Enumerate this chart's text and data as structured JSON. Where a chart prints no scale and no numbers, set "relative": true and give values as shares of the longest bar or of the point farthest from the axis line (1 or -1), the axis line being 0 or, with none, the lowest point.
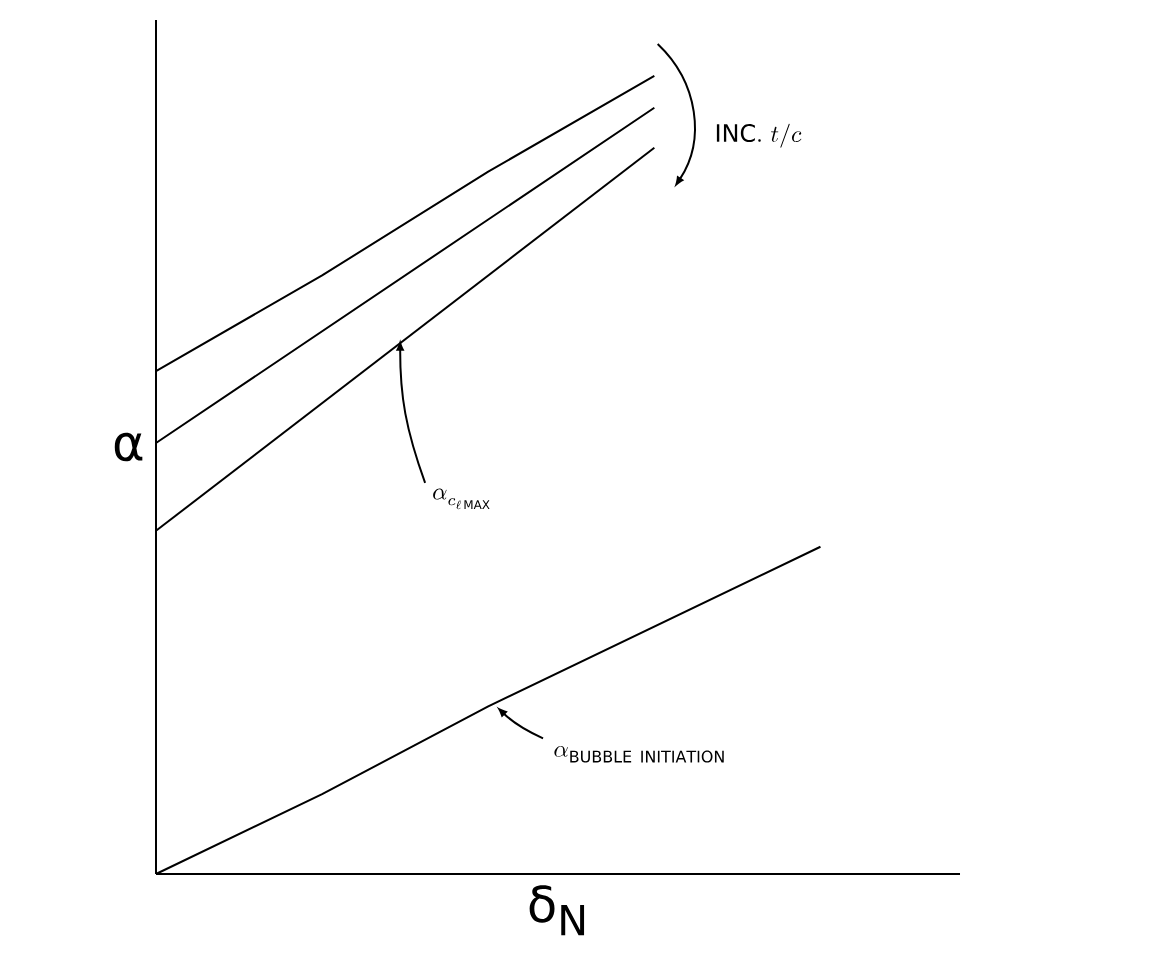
{
  "chart_data": {
    "type": "line",
    "relative": true,
    "xlabel": "δ$_{N}$",
    "ylabel": "α",
    "categories": [
      null,
      null,
      null,
      null,
      null
    ],
    "series": [
      {
        "color": "#000000",
        "values": [
          0.63,
          0.75,
          0.88,
          1.0,
          null
        ]
      },
      {
        "color": "#000000",
        "values": [
          0.54,
          0.68,
          0.82,
          0.96,
          null
        ]
      },
      {
        "color": "#000000",
        "values": [
          0.43,
          0.59,
          0.75,
          0.91,
          null
        ]
      },
      {
        "color": "#000000",
        "values": [
          0,
          0.1,
          0.21,
          0.31,
          0.41
        ]
      }
    ],
    "annotations": [
      "\\mathrm{INC.}\\ t/c",
      "\\alpha_{c_{\\ell\\,\\mathrm{MAX}}}",
      "\\alpha_{\\mathrm{BUBBLE\\ INITIATION}}"
    ]
  }
}
